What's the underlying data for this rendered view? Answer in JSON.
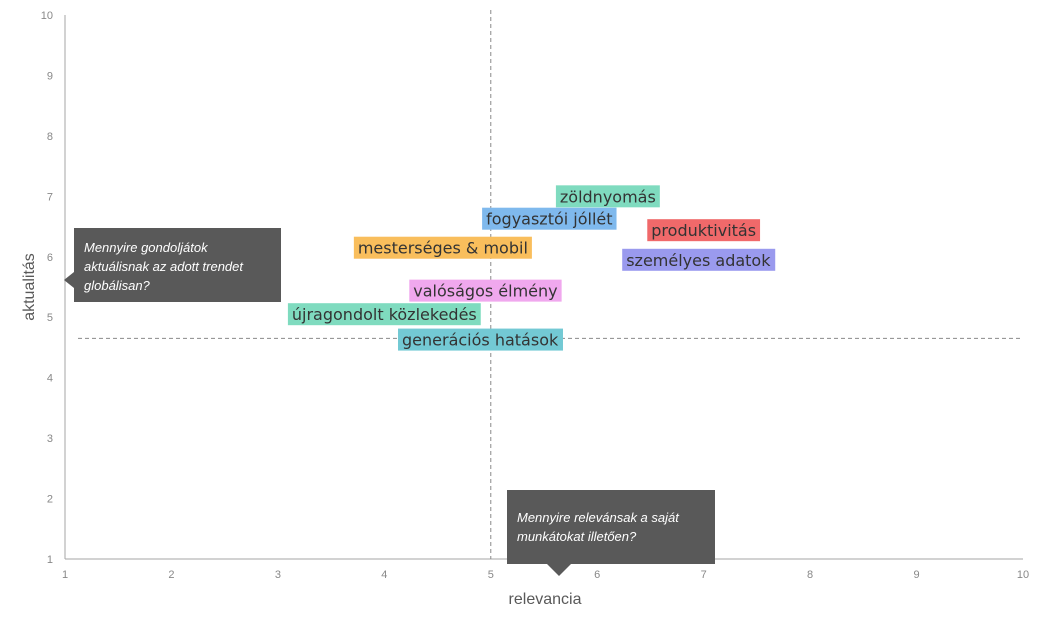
{
  "chart_data": {
    "type": "scatter",
    "xlabel": "relevancia",
    "ylabel": "aktualitás",
    "xlim": [
      1,
      10
    ],
    "ylim": [
      1,
      10
    ],
    "xticks": [
      1,
      2,
      3,
      4,
      5,
      6,
      7,
      8,
      9,
      10
    ],
    "yticks": [
      1,
      2,
      3,
      4,
      5,
      6,
      7,
      8,
      9,
      10
    ],
    "grid": false,
    "reference_lines": {
      "x": 5,
      "y": 4.65
    },
    "points": [
      {
        "label": "zöldnyomás",
        "x": 6.1,
        "y": 7.0,
        "color": "#7FDBBF"
      },
      {
        "label": "fogyasztói jóllét",
        "x": 5.55,
        "y": 6.63,
        "color": "#7FB9ED"
      },
      {
        "label": "produktivitás",
        "x": 7.0,
        "y": 6.44,
        "color": "#F0696A"
      },
      {
        "label": "mesterséges & mobil",
        "x": 4.55,
        "y": 6.15,
        "color": "#F9BE5C"
      },
      {
        "label": "személyes adatok",
        "x": 6.95,
        "y": 5.95,
        "color": "#9A9AEE"
      },
      {
        "label": "valóságos élmény",
        "x": 4.95,
        "y": 5.44,
        "color": "#F0A8EE"
      },
      {
        "label": "újragondolt közlekedés",
        "x": 4.0,
        "y": 5.05,
        "color": "#7FDBBF"
      },
      {
        "label": "generációs hatások",
        "x": 4.9,
        "y": 4.63,
        "color": "#73C9D4"
      }
    ]
  },
  "notes": {
    "relevance_question": "Mennyire relevánsak a saját munkátokat illetően?",
    "topicality_question": "Mennyire gondoljátok aktuálisnak az adott trendet globálisan?"
  }
}
